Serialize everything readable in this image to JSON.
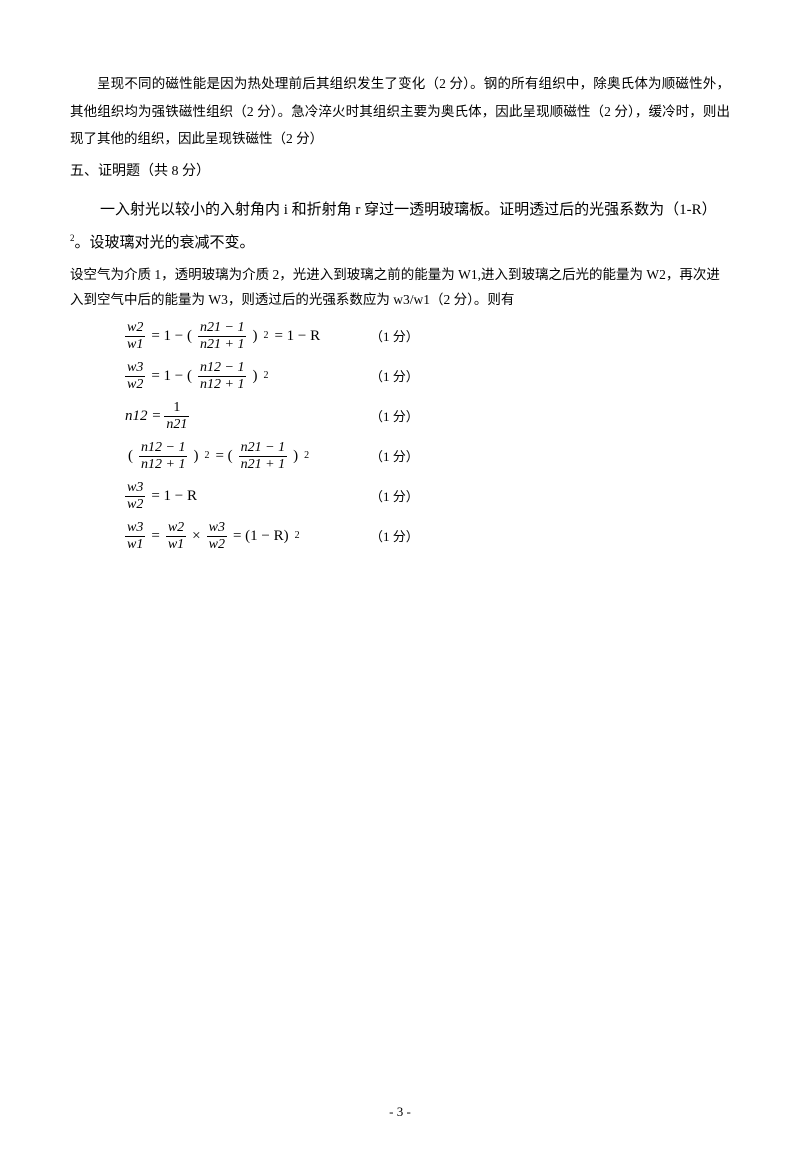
{
  "para1": "呈现不同的磁性能是因为热处理前后其组织发生了变化（2 分）。钢的所有组织中，除奥氏体为顺磁性外，其他组织均为强铁磁性组织（2 分）。急冷淬火时其组织主要为奥氏体，因此呈现顺磁性（2 分），缓冷时，则出现了其他的组织，因此呈现铁磁性（2 分）",
  "section5": "五、证明题（共 8 分）",
  "problem_a": "一入射光以较小的入射角内 i 和折射角 r 穿过一透明玻璃板。证明透过后的光强系数为（1-R）",
  "problem_b": "。设玻璃对光的衰减不变。",
  "setup": "设空气为介质 1，透明玻璃为介质 2，光进入到玻璃之前的能量为 W1,进入到玻璃之后光的能量为 W2，再次进入到空气中后的能量为 W3，则透过后的光强系数应为 w3/w1（2 分）。则有",
  "eq": {
    "r1": {
      "n1": "w2",
      "d1": "w1",
      "mid": "= 1 − (",
      "n2": "n21 − 1",
      "d2": "n21 + 1",
      "tail": ")",
      "tail2": "= 1 − R",
      "score": "（1 分）"
    },
    "r2": {
      "n1": "w3",
      "d1": "w2",
      "mid": "= 1 − (",
      "n2": "n12 − 1",
      "d2": "n12 + 1",
      "tail": ")",
      "score": "（1 分）"
    },
    "r3": {
      "lhs": "n12 =",
      "n2": "1",
      "d2": "n21",
      "score": "（1 分）"
    },
    "r4": {
      "pre": "(",
      "n1": "n12 − 1",
      "d1": "n12 + 1",
      "mid": ")",
      "eq": "= (",
      "n2": "n21 − 1",
      "d2": "n21 + 1",
      "tail": ")",
      "score": "（1 分）"
    },
    "r5": {
      "n1": "w3",
      "d1": "w2",
      "rhs": "= 1 − R",
      "score": "（1 分）"
    },
    "r6": {
      "n1": "w3",
      "d1": "w1",
      "eq1": "=",
      "n2": "w2",
      "d2": "w1",
      "times": "×",
      "n3": "w3",
      "d3": "w2",
      "rhs": "= (1 − R)",
      "score": "（1 分）"
    }
  },
  "exp2": "2",
  "page_number": "- 3 -"
}
